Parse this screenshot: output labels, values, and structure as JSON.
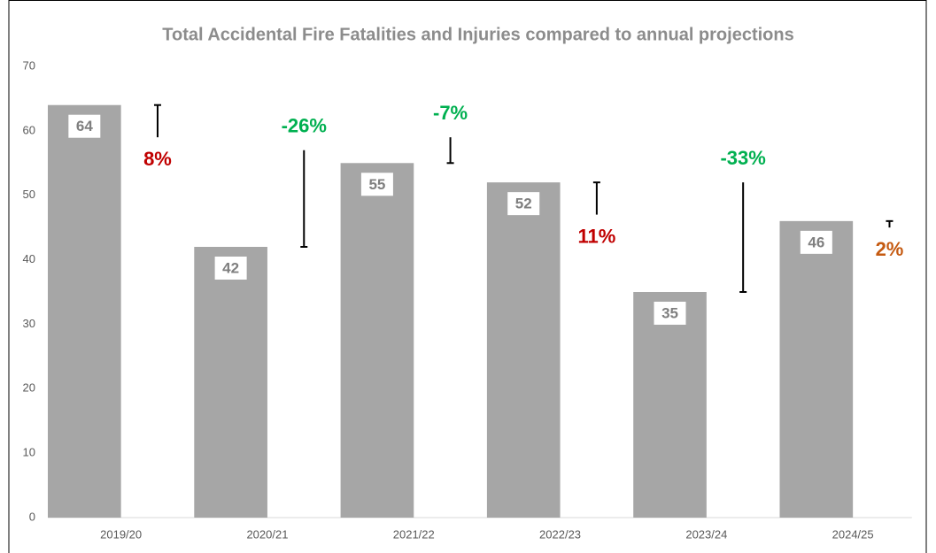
{
  "chart_data": {
    "type": "bar",
    "title": "Total Accidental Fire Fatalities and Injuries compared to annual projections",
    "categories": [
      "2019/20",
      "2020/21",
      "2021/22",
      "2022/23",
      "2023/24",
      "2024/25"
    ],
    "values": [
      64,
      42,
      55,
      52,
      35,
      46
    ],
    "color": "#a6a6a6",
    "projections": [
      59,
      57,
      59,
      47,
      52,
      45
    ],
    "changes": [
      8,
      -26,
      -7,
      11,
      -33,
      2
    ],
    "change_labels": [
      "8%",
      "-26%",
      "-7%",
      "11%",
      "-33%",
      "2%"
    ],
    "change_colors": [
      "#c00000",
      "#00b050",
      "#00b050",
      "#c00000",
      "#00b050",
      "#c55a11"
    ],
    "ylim": [
      0,
      70
    ],
    "yticks": [
      0,
      10,
      20,
      30,
      40,
      50,
      60,
      70
    ],
    "grid": false
  }
}
